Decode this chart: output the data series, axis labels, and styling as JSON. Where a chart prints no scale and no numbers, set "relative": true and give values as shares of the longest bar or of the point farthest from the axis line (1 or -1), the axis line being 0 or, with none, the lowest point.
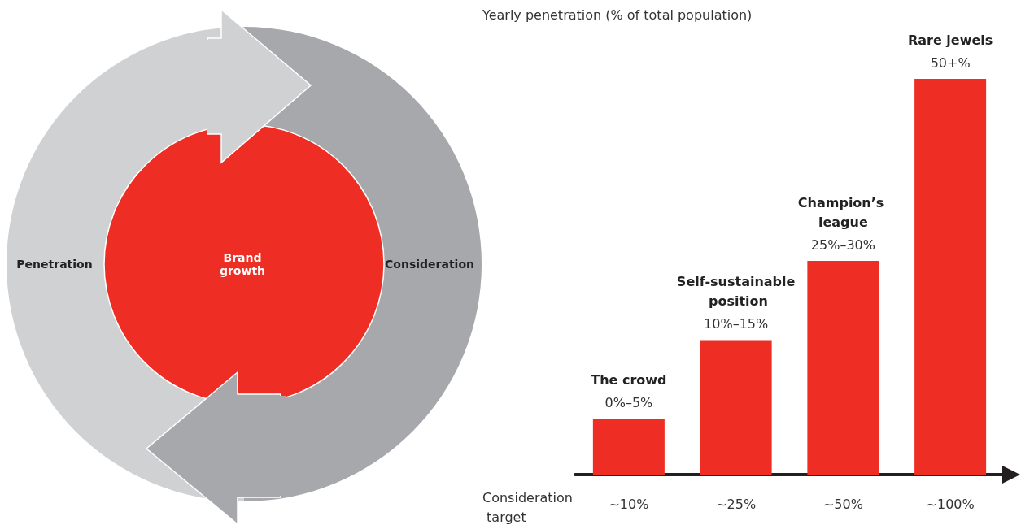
{
  "chart_data": [
    {
      "type": "other",
      "annotations": [
        "Penetration",
        "Brand growth",
        "Consideration"
      ]
    },
    {
      "type": "bar",
      "relative": true,
      "ylabel": "Yearly penetration (% of total population)",
      "xlabel": "Consideration target",
      "categories": [
        "~10%",
        "~25%",
        "~50%",
        "~100%"
      ],
      "values": [
        0.14,
        0.34,
        0.54,
        1
      ],
      "color": "#ee2e24",
      "annotations": [
        {
          "text": "0%–5%",
          "x": "~10%",
          "y": 0.14
        },
        {
          "text": "10%–15%",
          "x": "~25%",
          "y": 0.34
        },
        {
          "text": "25%–30%",
          "x": "~50%",
          "y": 0.54
        },
        {
          "text": "50+%",
          "x": "~100%",
          "y": 1
        },
        {
          "text": "The crowd",
          "x": "~10%",
          "y": 0.14
        },
        {
          "text": "Self-sustainable position",
          "x": "~25%",
          "y": 0.34
        },
        {
          "text": "Champion’s league",
          "x": "~50%",
          "y": 0.54
        },
        {
          "text": "Rare jewels",
          "x": "~100%",
          "y": 1
        }
      ],
      "grid": false
    }
  ]
}
